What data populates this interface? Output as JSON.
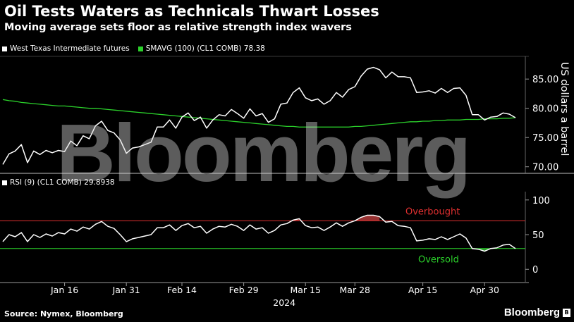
{
  "header": {
    "title": "Oil Tests Waters as Technicals Thwart Losses",
    "subtitle": "Moving average sets floor as relative strength index wavers"
  },
  "legend_top": {
    "wti": "West Texas Intermediate futures",
    "sma": "SMAVG (100) (CL1 COMB) 78.38"
  },
  "legend_bottom": {
    "rsi": "RSI (9) (CL1 COMB) 29.8938"
  },
  "annotations": {
    "overbought": "Overbought",
    "oversold": "Oversold"
  },
  "footer": {
    "source": "Source: Nymex, Bloomberg",
    "brand": "Bloomberg",
    "brand_icon": "B"
  },
  "watermark": "Bloomberg",
  "colors": {
    "price": "#ffffff",
    "sma": "#2bd12b",
    "overbought_line": "#e03030",
    "oversold_line": "#2bd12b",
    "overbought_fill": "#b13a3a",
    "oversold_fill": "#35b335"
  },
  "chart_data": [
    {
      "type": "line",
      "y_axis_label": "US dollars a barrel",
      "ylim": [
        69,
        89
      ],
      "yticks": [
        70,
        75,
        80,
        85
      ],
      "ytick_labels": [
        "70.00",
        "75.00",
        "80.00",
        "85.00"
      ],
      "x_tick_labels": [
        "Jan 16",
        "Jan 31",
        "Feb 14",
        "Feb 29",
        "Mar 15",
        "Mar 28",
        "Apr 15",
        "Apr 30"
      ],
      "x_year_label": "2024",
      "x_ticks_at_index": [
        10,
        20,
        29,
        39,
        49,
        57,
        68,
        78
      ],
      "series": [
        {
          "name": "West Texas Intermediate futures",
          "values": [
            70.4,
            72.2,
            72.7,
            73.8,
            70.7,
            72.7,
            72.1,
            72.8,
            72.4,
            72.8,
            72.6,
            74.4,
            73.6,
            75.3,
            74.8,
            77.0,
            77.8,
            76.2,
            75.8,
            74.6,
            72.3,
            73.2,
            73.4,
            73.8,
            74.2,
            76.8,
            76.8,
            78.0,
            76.6,
            78.5,
            79.2,
            77.9,
            78.5,
            76.6,
            78.0,
            78.9,
            78.7,
            79.8,
            79.1,
            78.3,
            79.9,
            78.7,
            79.1,
            77.6,
            78.2,
            80.7,
            80.9,
            82.7,
            83.5,
            81.8,
            81.3,
            81.6,
            80.7,
            81.3,
            82.7,
            81.9,
            83.2,
            83.7,
            85.5,
            86.7,
            87.0,
            86.6,
            85.2,
            86.2,
            85.4,
            85.4,
            85.2,
            82.7,
            82.8,
            83.0,
            82.6,
            83.4,
            82.7,
            83.4,
            83.5,
            82.2,
            78.9,
            78.9,
            78.0,
            78.5,
            78.6,
            79.2,
            79.0,
            78.4
          ]
        },
        {
          "name": "SMAVG (100)",
          "values": [
            81.5,
            81.3,
            81.2,
            81.0,
            80.9,
            80.8,
            80.7,
            80.6,
            80.5,
            80.4,
            80.4,
            80.3,
            80.2,
            80.1,
            80.0,
            80.0,
            79.9,
            79.8,
            79.7,
            79.6,
            79.5,
            79.4,
            79.3,
            79.2,
            79.1,
            79.0,
            78.9,
            78.8,
            78.7,
            78.6,
            78.5,
            78.4,
            78.3,
            78.2,
            78.1,
            78.0,
            77.9,
            77.8,
            77.7,
            77.6,
            77.5,
            77.4,
            77.3,
            77.2,
            77.1,
            77.0,
            76.9,
            76.9,
            76.8,
            76.8,
            76.8,
            76.8,
            76.8,
            76.8,
            76.8,
            76.8,
            76.8,
            76.9,
            76.9,
            77.0,
            77.1,
            77.2,
            77.3,
            77.4,
            77.5,
            77.6,
            77.7,
            77.7,
            77.8,
            77.8,
            77.9,
            77.9,
            78.0,
            78.0,
            78.0,
            78.1,
            78.1,
            78.1,
            78.2,
            78.2,
            78.2,
            78.3,
            78.3,
            78.4
          ]
        }
      ]
    },
    {
      "type": "line",
      "ylim": [
        -15,
        113
      ],
      "yticks": [
        0,
        50,
        100
      ],
      "ytick_labels": [
        "0",
        "50",
        "100"
      ],
      "overbought_level": 70,
      "oversold_level": 30,
      "series": [
        {
          "name": "RSI (9)",
          "values": [
            40,
            50,
            47,
            53,
            40,
            50,
            46,
            51,
            48,
            53,
            51,
            58,
            55,
            61,
            58,
            65,
            69,
            62,
            59,
            50,
            40,
            44,
            46,
            48,
            50,
            60,
            60,
            64,
            56,
            63,
            66,
            60,
            62,
            52,
            58,
            62,
            61,
            65,
            62,
            56,
            64,
            58,
            60,
            52,
            56,
            64,
            66,
            71,
            73,
            63,
            60,
            61,
            56,
            61,
            67,
            62,
            67,
            70,
            75,
            78,
            78,
            76,
            68,
            69,
            63,
            62,
            60,
            41,
            42,
            44,
            43,
            47,
            43,
            47,
            51,
            45,
            30,
            29,
            26,
            30,
            31,
            35,
            36,
            30
          ]
        }
      ]
    }
  ]
}
